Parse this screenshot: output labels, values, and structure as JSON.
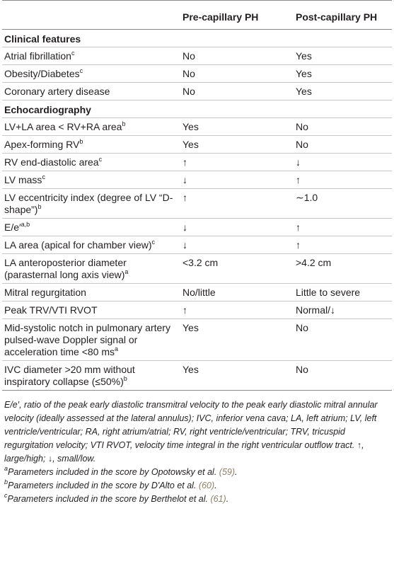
{
  "header": {
    "col1": "",
    "col2": "Pre-capillary PH",
    "col3": "Post-capillary PH"
  },
  "sections": [
    {
      "title": "Clinical features",
      "rows": [
        {
          "feature": "Atrial fibrillation",
          "sup": "c",
          "pre": "No",
          "post": "Yes"
        },
        {
          "feature": "Obesity/Diabetes",
          "sup": "c",
          "pre": "No",
          "post": "Yes"
        },
        {
          "feature": "Coronary artery disease",
          "sup": "",
          "pre": "No",
          "post": "Yes"
        }
      ]
    },
    {
      "title": "Echocardiography",
      "rows": [
        {
          "feature": "LV+LA area < RV+RA area",
          "sup": "b",
          "pre": "Yes",
          "post": "No"
        },
        {
          "feature": "Apex-forming RV",
          "sup": "b",
          "pre": "Yes",
          "post": "No"
        },
        {
          "feature": "RV end-diastolic area",
          "sup": "c",
          "pre": "↑",
          "post": "↓"
        },
        {
          "feature": "LV mass",
          "sup": "c",
          "pre": "↓",
          "post": "↑"
        },
        {
          "feature": "LV eccentricity index (degree of LV “D-shape”)",
          "sup": "b",
          "pre": "↑",
          "post": "∼1.0"
        },
        {
          "feature": "E/e′",
          "sup": "a,b",
          "pre": "↓",
          "post": "↑"
        },
        {
          "feature": "LA area (apical for chamber view)",
          "sup": "c",
          "pre": "↓",
          "post": "↑"
        },
        {
          "feature": "LA anteroposterior diameter (parasternal long axis view)",
          "sup": "a",
          "pre": "<3.2 cm",
          "post": ">4.2 cm"
        },
        {
          "feature": "Mitral regurgitation",
          "sup": "",
          "pre": "No/little",
          "post": "Little to severe"
        },
        {
          "feature": "Peak TRV/VTI RVOT",
          "sup": "",
          "pre": "↑",
          "post": "Normal/↓"
        },
        {
          "feature": "Mid-systolic notch in pulmonary artery pulsed-wave Doppler signal or acceleration time <80 ms",
          "sup": "a",
          "pre": "Yes",
          "post": "No"
        },
        {
          "feature": "IVC diameter >20 mm without inspiratory collapse (≤50%)",
          "sup": "b",
          "pre": "Yes",
          "post": "No"
        }
      ]
    }
  ],
  "footnotes": {
    "abbreviations": "E/e′, ratio of the peak early diastolic transmitral velocity to the peak early diastolic mitral annular velocity (ideally assessed at the lateral annulus); IVC, inferior vena cava; LA, left atrium; LV, left ventricle/ventricular; RA, right atrium/atrial; RV, right ventricle/ventricular; TRV, tricuspid regurgitation velocity; VTI RVOT, velocity time integral in the right ventricular outflow tract. ↑, large/high; ↓, small/low.",
    "notes": [
      {
        "mark": "a",
        "text": "Parameters included in the score by Opotowsky et al. ",
        "ref": "(59)"
      },
      {
        "mark": "b",
        "text": "Parameters included in the score by D'Alto et al. ",
        "ref": "(60)"
      },
      {
        "mark": "c",
        "text": "Parameters included in the score by Berthelot et al. ",
        "ref": "(61)"
      }
    ]
  }
}
